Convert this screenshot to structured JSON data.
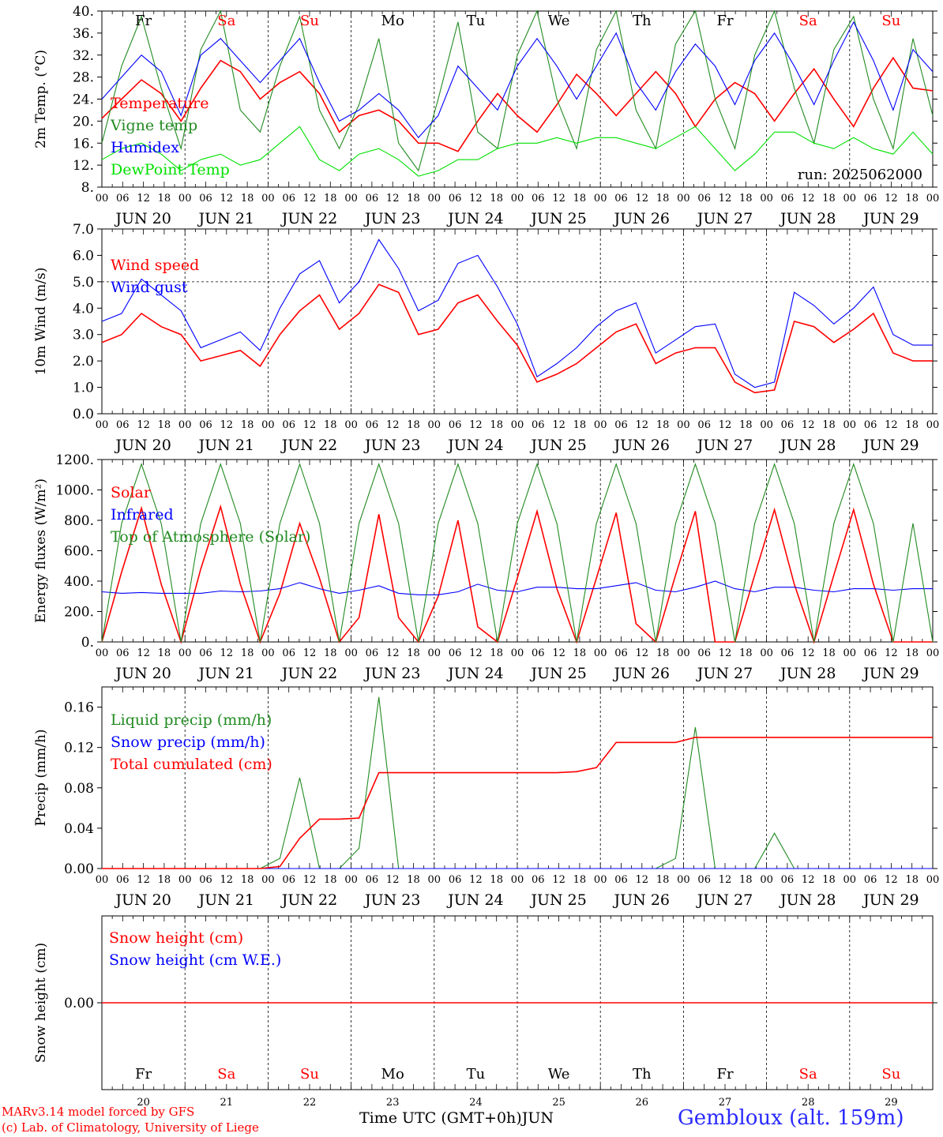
{
  "days": [
    "JUN 20",
    "JUN 21",
    "JUN 22",
    "JUN 23",
    "JUN 24",
    "JUN 25",
    "JUN 26",
    "JUN 27",
    "JUN 28",
    "JUN 29"
  ],
  "day_numbers": [
    "20",
    "21",
    "22",
    "23",
    "24",
    "25",
    "26",
    "27",
    "28",
    "29"
  ],
  "hour_ticks": [
    "00",
    "06",
    "12",
    "18"
  ],
  "weekdays": [
    {
      "label": "Fr",
      "color": "#000000"
    },
    {
      "label": "Sa",
      "color": "#ff0000"
    },
    {
      "label": "Su",
      "color": "#ff0000"
    },
    {
      "label": "Mo",
      "color": "#000000"
    },
    {
      "label": "Tu",
      "color": "#000000"
    },
    {
      "label": "We",
      "color": "#000000"
    },
    {
      "label": "Th",
      "color": "#000000"
    },
    {
      "label": "Fr",
      "color": "#000000"
    },
    {
      "label": "Sa",
      "color": "#ff0000"
    },
    {
      "label": "Su",
      "color": "#ff0000"
    }
  ],
  "footer": {
    "credit_line1": "MARv3.14 model forced by GFS",
    "credit_line2": "(c) Lab. of Climatology, University of Liege",
    "x_axis_title": "Time UTC (GMT+0h)",
    "month": "JUN",
    "station": "Gembloux (alt. 159m)"
  },
  "chart_data": [
    {
      "type": "line",
      "ylabel": "2m Temp. (°C)",
      "ylim": [
        8,
        40
      ],
      "yticks": [
        "40.",
        "36.",
        "32.",
        "28.",
        "24.",
        "20.",
        "16.",
        "12.",
        "8."
      ],
      "ytick_values": [
        40,
        36,
        32,
        28,
        24,
        20,
        16,
        12,
        8
      ],
      "annotation": "run: 2025062000",
      "x_unit": "hours since JUN 20 00 UTC (6-hourly samples)",
      "series": [
        {
          "name": "Temperature",
          "color": "#ff0000",
          "values": [
            20.5,
            24,
            27.5,
            25,
            20,
            26,
            31,
            29,
            24,
            27,
            29,
            25,
            18,
            21,
            22,
            20,
            16,
            16,
            14.5,
            20,
            25,
            21,
            18,
            23,
            28.5,
            25,
            21,
            25,
            29,
            25,
            19,
            24,
            27,
            25,
            20,
            25,
            29.5,
            24,
            19,
            26,
            31.5,
            26,
            25.5
          ]
        },
        {
          "name": "Vigne temp",
          "color": "#228b22",
          "values": [
            16,
            30,
            39,
            26,
            15,
            33,
            40,
            22,
            18,
            30,
            39,
            22,
            15,
            23,
            35,
            16,
            11,
            24,
            38,
            18,
            15,
            32,
            40,
            24,
            15,
            33,
            40,
            22,
            15,
            34,
            40,
            24,
            15,
            32,
            40,
            26,
            16,
            33,
            39,
            24,
            15,
            35,
            21
          ]
        },
        {
          "name": "Humidex",
          "color": "#0000ff",
          "values": [
            24,
            28,
            32,
            29,
            21,
            32,
            35,
            31,
            27,
            31,
            35,
            27,
            20,
            22,
            25,
            22,
            17,
            21,
            30,
            26,
            22,
            30,
            35,
            30,
            24,
            30,
            36,
            27,
            22,
            29,
            34,
            30,
            23,
            31,
            36,
            30,
            23,
            31,
            38,
            31,
            22,
            33,
            29
          ]
        },
        {
          "name": "DewPoint Temp",
          "color": "#00e000",
          "values": [
            13,
            15,
            16,
            14,
            11,
            13,
            14,
            12,
            13,
            16,
            19,
            13,
            11,
            14,
            15,
            13,
            10,
            11,
            13,
            13,
            15,
            16,
            16,
            17,
            16,
            17,
            17,
            16,
            15,
            17,
            19,
            15,
            11,
            14,
            18,
            18,
            16,
            15,
            17,
            15,
            14,
            18,
            14
          ]
        }
      ]
    },
    {
      "type": "line",
      "ylabel": "10m Wind (m/s)",
      "ylim": [
        0,
        7
      ],
      "yticks": [
        "7.0",
        "6.0",
        "5.0",
        "4.0",
        "3.0",
        "2.0",
        "1.0",
        "0.0"
      ],
      "ytick_values": [
        7,
        6,
        5,
        4,
        3,
        2,
        1,
        0
      ],
      "reference_line": 5,
      "x_unit": "hours since JUN 20 00 UTC (6-hourly samples)",
      "series": [
        {
          "name": "Wind speed",
          "color": "#ff0000",
          "values": [
            2.7,
            3.0,
            3.8,
            3.3,
            3.0,
            2.0,
            2.2,
            2.4,
            1.8,
            3.0,
            3.9,
            4.5,
            3.2,
            3.8,
            4.9,
            4.6,
            3.0,
            3.2,
            4.2,
            4.5,
            3.5,
            2.6,
            1.2,
            1.5,
            1.9,
            2.5,
            3.1,
            3.4,
            1.9,
            2.3,
            2.5,
            2.5,
            1.2,
            0.8,
            0.9,
            3.5,
            3.3,
            2.7,
            3.2,
            3.8,
            2.3,
            2.0,
            2.0
          ]
        },
        {
          "name": "Wind gust",
          "color": "#0000ff",
          "values": [
            3.5,
            3.8,
            5.1,
            4.5,
            3.9,
            2.5,
            2.8,
            3.1,
            2.4,
            4.0,
            5.3,
            5.8,
            4.2,
            5.0,
            6.6,
            5.5,
            3.9,
            4.3,
            5.7,
            6.0,
            4.8,
            3.4,
            1.4,
            1.9,
            2.5,
            3.3,
            3.9,
            4.2,
            2.3,
            2.8,
            3.3,
            3.4,
            1.5,
            1.0,
            1.2,
            4.6,
            4.1,
            3.4,
            4.0,
            4.8,
            3.0,
            2.6,
            2.6
          ]
        }
      ]
    },
    {
      "type": "line",
      "ylabel": "Energy fluxes (W/m²)",
      "ylim": [
        0,
        1200
      ],
      "yticks": [
        "1200.",
        "1000.",
        "800.",
        "600.",
        "400.",
        "200.",
        "0."
      ],
      "ytick_values": [
        1200,
        1000,
        800,
        600,
        400,
        200,
        0
      ],
      "x_unit": "hours since JUN 20 00 UTC (6-hourly samples)",
      "series": [
        {
          "name": "Solar",
          "color": "#ff0000",
          "values": [
            0,
            460,
            880,
            380,
            0,
            480,
            890,
            380,
            0,
            320,
            780,
            420,
            0,
            160,
            840,
            160,
            0,
            300,
            800,
            100,
            0,
            420,
            860,
            350,
            0,
            420,
            850,
            120,
            0,
            440,
            860,
            0,
            0,
            440,
            870,
            380,
            0,
            440,
            870,
            380,
            0,
            0,
            0
          ]
        },
        {
          "name": "Infrared",
          "color": "#0000ff",
          "values": [
            330,
            320,
            325,
            320,
            320,
            320,
            335,
            330,
            335,
            350,
            390,
            350,
            320,
            340,
            370,
            320,
            310,
            310,
            330,
            380,
            340,
            330,
            360,
            360,
            350,
            350,
            370,
            390,
            340,
            330,
            360,
            400,
            350,
            330,
            360,
            360,
            340,
            330,
            350,
            350,
            340,
            350,
            350
          ]
        },
        {
          "name": "Top of Atmosphere (Solar)",
          "color": "#228b22",
          "values": [
            0,
            780,
            1170,
            780,
            0,
            780,
            1170,
            780,
            0,
            780,
            1170,
            780,
            0,
            780,
            1170,
            780,
            0,
            780,
            1170,
            780,
            0,
            780,
            1170,
            780,
            0,
            780,
            1170,
            780,
            0,
            780,
            1170,
            780,
            0,
            780,
            1170,
            780,
            0,
            780,
            1170,
            780,
            0,
            780,
            0
          ]
        }
      ]
    },
    {
      "type": "line",
      "ylabel": "Precip (mm/h)",
      "ylim": [
        0,
        0.18
      ],
      "yticks": [
        "0.16",
        "0.12",
        "0.08",
        "0.04",
        "0.00"
      ],
      "ytick_values": [
        0.16,
        0.12,
        0.08,
        0.04,
        0
      ],
      "x_unit": "hours since JUN 20 00 UTC (6-hourly samples)",
      "series": [
        {
          "name": "Liquid precip (mm/h)",
          "color": "#228b22",
          "values": [
            0,
            0,
            0,
            0,
            0,
            0,
            0,
            0,
            0,
            0.01,
            0.09,
            0,
            0,
            0.02,
            0.17,
            0,
            0,
            0,
            0,
            0,
            0,
            0,
            0,
            0,
            0,
            0,
            0,
            0,
            0,
            0.01,
            0.14,
            0,
            0,
            0,
            0.035,
            0,
            0,
            0,
            0,
            0,
            0,
            0,
            0
          ]
        },
        {
          "name": "Snow precip (mm/h)",
          "color": "#0000ff",
          "values": [
            0,
            0,
            0,
            0,
            0,
            0,
            0,
            0,
            0,
            0,
            0,
            0,
            0,
            0,
            0,
            0,
            0,
            0,
            0,
            0,
            0,
            0,
            0,
            0,
            0,
            0,
            0,
            0,
            0,
            0,
            0,
            0,
            0,
            0,
            0,
            0,
            0,
            0,
            0,
            0,
            0,
            0,
            0
          ]
        },
        {
          "name": "Total cumulated (cm)",
          "color": "#ff0000",
          "values": [
            0,
            0,
            0,
            0,
            0,
            0,
            0,
            0,
            0,
            0.002,
            0.03,
            0.049,
            0.049,
            0.05,
            0.095,
            0.095,
            0.095,
            0.095,
            0.095,
            0.095,
            0.095,
            0.095,
            0.095,
            0.095,
            0.096,
            0.1,
            0.125,
            0.125,
            0.125,
            0.125,
            0.13,
            0.13,
            0.13,
            0.13,
            0.13,
            0.13,
            0.13,
            0.13,
            0.13,
            0.13,
            0.13,
            0.13,
            0.13
          ]
        }
      ]
    },
    {
      "type": "line",
      "ylabel": "Snow height (cm)",
      "ylim": [
        -1,
        1
      ],
      "yticks": [
        "0.00"
      ],
      "ytick_values": [
        0
      ],
      "x_unit": "hours since JUN 20 00 UTC (6-hourly samples)",
      "series": [
        {
          "name": "Snow height (cm)",
          "color": "#ff0000",
          "values": [
            0,
            0,
            0,
            0,
            0,
            0,
            0,
            0,
            0,
            0,
            0,
            0,
            0,
            0,
            0,
            0,
            0,
            0,
            0,
            0,
            0,
            0,
            0,
            0,
            0,
            0,
            0,
            0,
            0,
            0,
            0,
            0,
            0,
            0,
            0,
            0,
            0,
            0,
            0,
            0,
            0,
            0,
            0
          ]
        },
        {
          "name": "Snow height (cm W.E.)",
          "color": "#0000ff",
          "values": []
        }
      ]
    }
  ]
}
